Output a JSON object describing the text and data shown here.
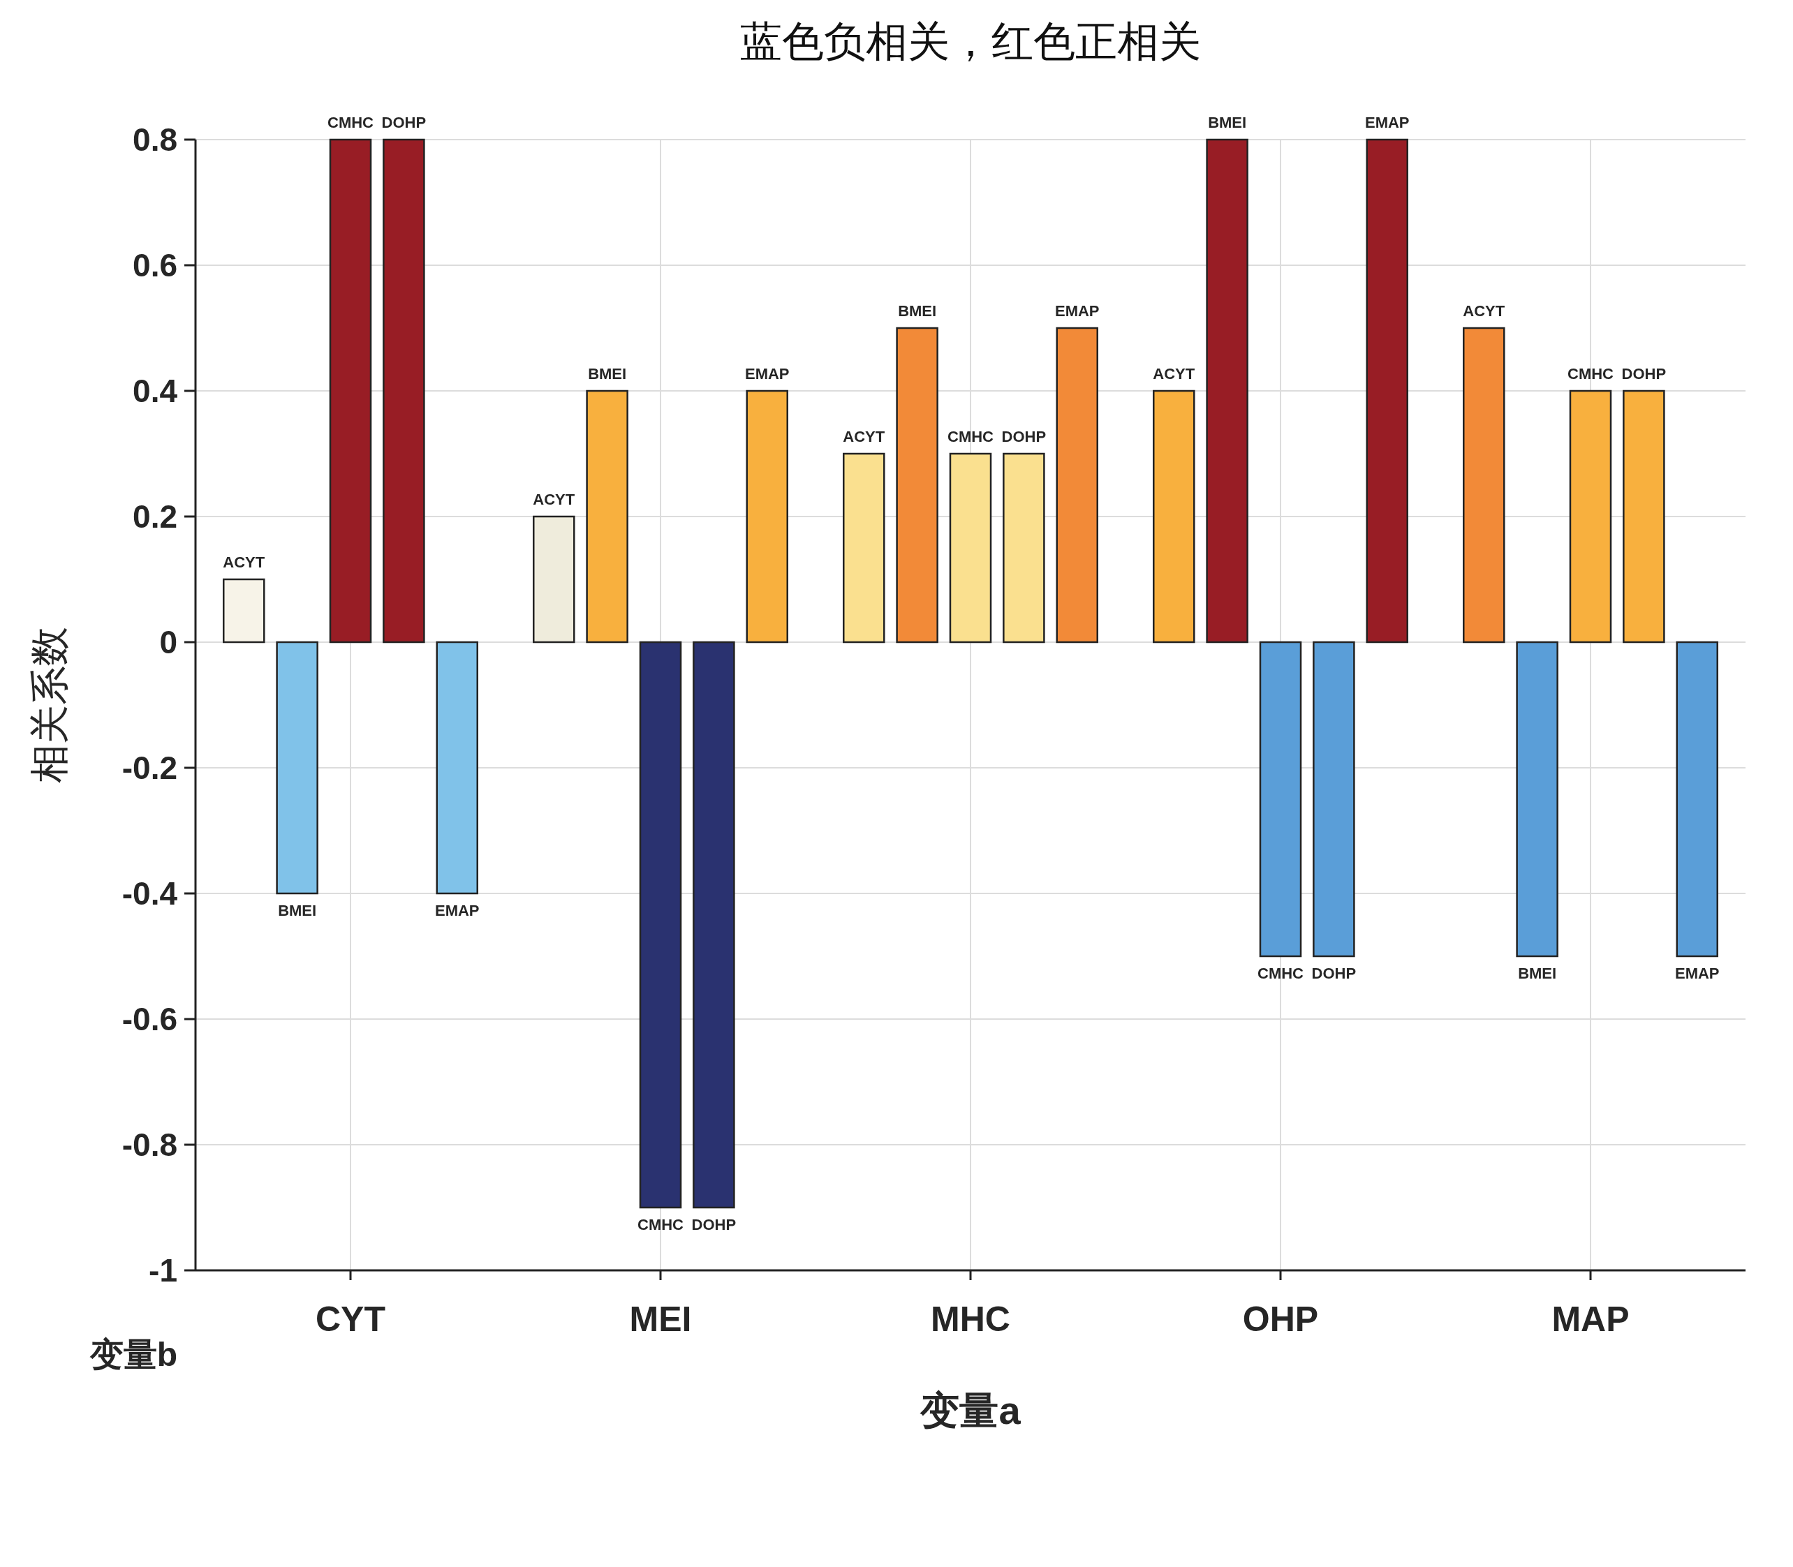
{
  "chart_data": {
    "type": "bar",
    "title": "蓝色负相关，红色正相关",
    "xlabel": "变量a",
    "ylabel": "相关系数",
    "legend_title": "变量b",
    "categories": [
      "CYT",
      "MEI",
      "MHC",
      "OHP",
      "MAP"
    ],
    "series": [
      {
        "name": "ACYT",
        "values": [
          0.1,
          0.2,
          0.3,
          0.4,
          0.5
        ],
        "colors": [
          "#f7f3e8",
          "#efecdc",
          "#fae08f",
          "#f8b03e",
          "#f28a38"
        ]
      },
      {
        "name": "BMEI",
        "values": [
          -0.4,
          0.4,
          0.5,
          0.8,
          -0.5
        ],
        "colors": [
          "#80c2e9",
          "#f8b03e",
          "#f28a38",
          "#981d25",
          "#5a9ed8"
        ]
      },
      {
        "name": "CMHC",
        "values": [
          0.8,
          -0.9,
          0.3,
          -0.5,
          0.4
        ],
        "colors": [
          "#981d25",
          "#2a3270",
          "#fae08f",
          "#5a9ed8",
          "#f8b03e"
        ]
      },
      {
        "name": "DOHP",
        "values": [
          0.8,
          -0.9,
          0.3,
          -0.5,
          0.4
        ],
        "colors": [
          "#981d25",
          "#2a3270",
          "#fae08f",
          "#5a9ed8",
          "#f8b03e"
        ]
      },
      {
        "name": "EMAP",
        "values": [
          -0.4,
          0.4,
          0.5,
          0.8,
          -0.5
        ],
        "colors": [
          "#80c2e9",
          "#f8b03e",
          "#f28a38",
          "#981d25",
          "#5a9ed8"
        ]
      }
    ],
    "ylim": [
      -1,
      0.8
    ],
    "yticks": [
      -1,
      -0.8,
      -0.6,
      -0.4,
      -0.2,
      0,
      0.2,
      0.4,
      0.6,
      0.8
    ],
    "grid": true
  }
}
